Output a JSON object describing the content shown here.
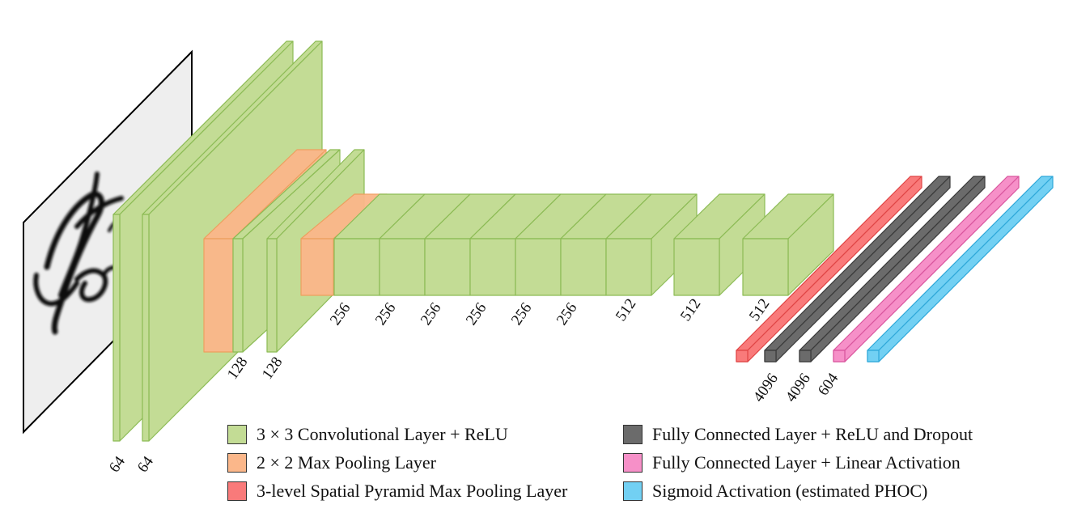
{
  "colors": {
    "conv": "#c3dc95",
    "conv_edge": "#8cbb55",
    "pool": "#fbb78a",
    "pool_edge": "#f09c5c",
    "spp": "#f97a7a",
    "spp_edge": "#e04545",
    "fc": "#6b6b6b",
    "fc_edge": "#3a3a3a",
    "linear": "#f690c8",
    "linear_edge": "#d9569e",
    "sigmoid": "#72d0f3",
    "sigmoid_edge": "#2fa8d9"
  },
  "input_image": {
    "icon": "handwritten-word-image",
    "text": "For"
  },
  "dimension_labels": {
    "conv1a": "64",
    "conv1b": "64",
    "conv2a": "128",
    "conv2b": "128",
    "conv3a": "256",
    "conv3b": "256",
    "conv3c": "256",
    "conv3d": "256",
    "conv3e": "256",
    "conv3f": "256",
    "conv4a": "512",
    "conv4b": "512",
    "conv4c": "512",
    "fc1": "4096",
    "fc2": "4096",
    "fc3": "604"
  },
  "legend": {
    "conv": "3 × 3 Convolutional Layer + ReLU",
    "pool": "2 × 2 Max Pooling Layer",
    "spp": "3-level Spatial Pyramid Max Pooling Layer",
    "fc_relu": "Fully Connected Layer + ReLU and Dropout",
    "fc_linear": "Fully Connected Layer + Linear Activation",
    "sigmoid": "Sigmoid Activation (estimated PHOC)"
  }
}
